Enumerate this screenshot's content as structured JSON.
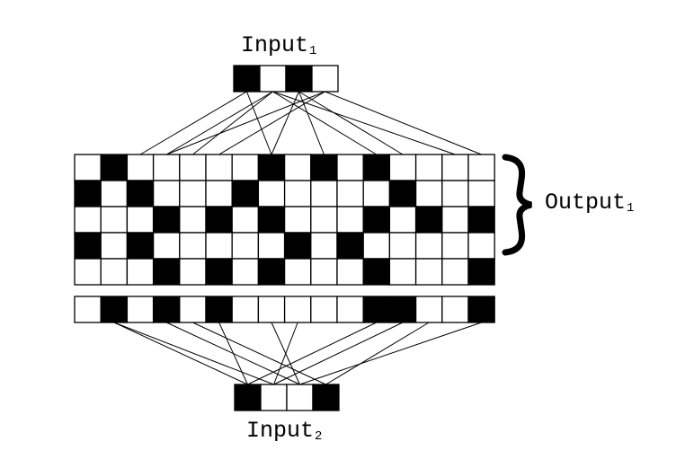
{
  "labels": {
    "input1_main": "Input",
    "input1_sub": "1",
    "output1_main": "Output",
    "output1_sub": "1",
    "input2_main": "Input",
    "input2_sub": "2"
  },
  "colors": {
    "filled": "#000000",
    "empty": "#ffffff",
    "stroke": "#000000"
  },
  "input1": [
    1,
    0,
    1,
    0
  ],
  "input2": [
    1,
    0,
    0,
    1
  ],
  "output1_rows": [
    [
      0,
      1,
      0,
      0,
      0,
      0,
      0,
      1,
      0,
      1,
      0,
      1,
      0,
      0,
      0,
      0
    ],
    [
      1,
      0,
      1,
      0,
      0,
      0,
      1,
      0,
      0,
      0,
      0,
      0,
      1,
      0,
      0,
      0
    ],
    [
      0,
      0,
      0,
      1,
      0,
      1,
      0,
      1,
      0,
      0,
      0,
      1,
      0,
      1,
      0,
      1
    ],
    [
      1,
      0,
      1,
      0,
      0,
      0,
      0,
      0,
      1,
      0,
      1,
      0,
      0,
      0,
      0,
      0
    ],
    [
      0,
      0,
      0,
      1,
      0,
      1,
      0,
      1,
      0,
      0,
      0,
      1,
      0,
      0,
      0,
      1
    ]
  ],
  "bottom_row": [
    0,
    1,
    0,
    1,
    0,
    1,
    0,
    0,
    0,
    0,
    0,
    1,
    1,
    0,
    0,
    1
  ],
  "connections_top": [
    [
      0,
      2
    ],
    [
      0,
      7
    ],
    [
      1,
      3
    ],
    [
      1,
      4
    ],
    [
      1,
      11
    ],
    [
      1,
      14
    ],
    [
      2,
      7
    ],
    [
      2,
      9
    ],
    [
      2,
      12
    ],
    [
      3,
      3
    ],
    [
      3,
      5
    ],
    [
      3,
      15
    ]
  ],
  "connections_bottom": [
    [
      1,
      0
    ],
    [
      5,
      0
    ],
    [
      11,
      0
    ],
    [
      1,
      1
    ],
    [
      8,
      1
    ],
    [
      12,
      1
    ],
    [
      3,
      2
    ],
    [
      7,
      2
    ],
    [
      15,
      2
    ],
    [
      4,
      3
    ],
    [
      13,
      3
    ]
  ],
  "brace": "}"
}
